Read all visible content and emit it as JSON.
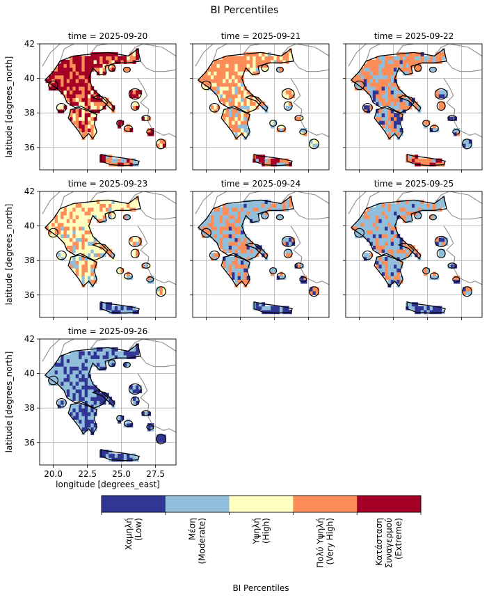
{
  "title": "BI Percentiles",
  "panel_titles": [
    "time = 2025-09-20",
    "time = 2025-09-21",
    "time = 2025-09-22",
    "time = 2025-09-23",
    "time = 2025-09-24",
    "time = 2025-09-25",
    "time = 2025-09-26"
  ],
  "ylabel": "latitude [degrees_north]",
  "xlabel": "longitude [degrees_east]",
  "y_ticks": [
    "42",
    "40",
    "38",
    "36"
  ],
  "x_ticks": [
    "20.0",
    "22.5",
    "25.0",
    "27.5"
  ],
  "colorbar": {
    "label": "BI Percentiles",
    "classes": [
      {
        "lines": [
          "Χαμηλή",
          "(Low)"
        ],
        "color": "#313695"
      },
      {
        "lines": [
          "Μέση",
          "(Moderate)"
        ],
        "color": "#91bfdb"
      },
      {
        "lines": [
          "Υψηλή",
          "(High)"
        ],
        "color": "#ffffbf"
      },
      {
        "lines": [
          "Πολύ Υψηλή",
          "(Very High)"
        ],
        "color": "#fc8d59"
      },
      {
        "lines": [
          "Κατάσταση",
          "Συναγερμού",
          "(Extreme)"
        ],
        "color": "#a50026"
      }
    ]
  },
  "map_data": {
    "lon_range": [
      19.0,
      29.0
    ],
    "lat_range": [
      34.7,
      42.0
    ],
    "panel_dominant_class": [
      4,
      3,
      3,
      2,
      1,
      1,
      1
    ],
    "panel_secondary_class": [
      3,
      2,
      1,
      3,
      3,
      3,
      0
    ]
  }
}
